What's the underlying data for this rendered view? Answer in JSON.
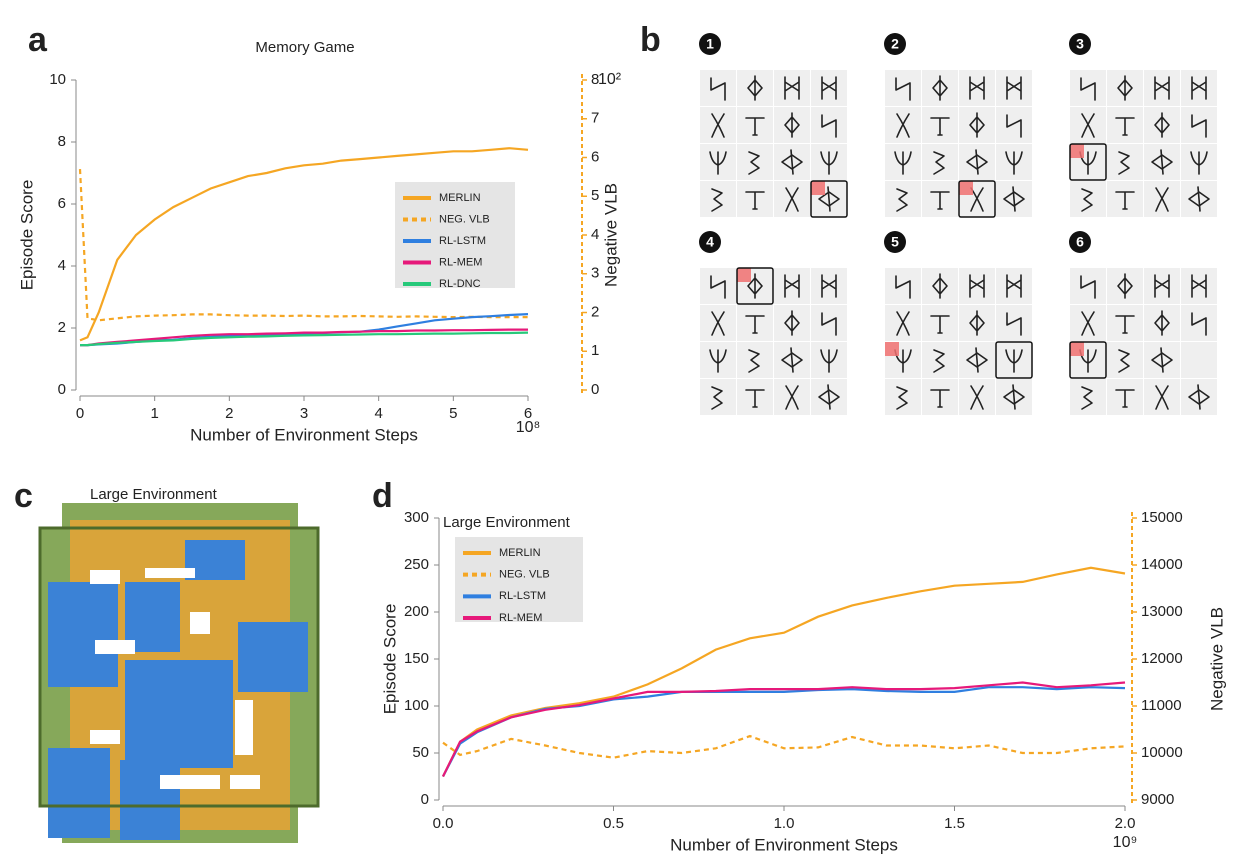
{
  "panel_labels": [
    "a",
    "b",
    "c",
    "d"
  ],
  "memory_steps": [
    "1",
    "2",
    "3",
    "4",
    "5",
    "6"
  ],
  "environment": {
    "title": "Large Environment"
  },
  "chart_data": [
    {
      "type": "line",
      "title": "Memory Game",
      "xlabel": "Number of Environment Steps",
      "ylabel": "Episode Score",
      "y2label": "Negative VLB",
      "x_exponent": "10⁸",
      "y2_exponent": "10²",
      "xlim": [
        0,
        6
      ],
      "xticks": [
        0,
        1,
        2,
        3,
        4,
        5,
        6
      ],
      "ylim": [
        0,
        10
      ],
      "yticks": [
        0,
        2,
        4,
        6,
        8,
        10
      ],
      "y2lim": [
        0,
        8
      ],
      "y2ticks": [
        0,
        1,
        2,
        3,
        4,
        5,
        6,
        7,
        8
      ],
      "x": [
        0,
        0.1,
        0.25,
        0.5,
        0.75,
        1,
        1.25,
        1.5,
        1.75,
        2,
        2.25,
        2.5,
        2.75,
        3,
        3.25,
        3.5,
        3.75,
        4,
        4.25,
        4.5,
        4.75,
        5,
        5.25,
        5.5,
        5.75,
        6
      ],
      "series": [
        {
          "name": "MERLIN",
          "color": "#f5a623",
          "style": "solid",
          "values": [
            1.6,
            1.7,
            2.5,
            4.2,
            5.0,
            5.5,
            5.9,
            6.2,
            6.5,
            6.7,
            6.9,
            7.0,
            7.15,
            7.25,
            7.3,
            7.4,
            7.45,
            7.5,
            7.55,
            7.6,
            7.65,
            7.7,
            7.7,
            7.75,
            7.8,
            7.75
          ]
        },
        {
          "name": "NEG. VLB",
          "color": "#f5a623",
          "style": "dashed",
          "axis": "y2",
          "values": [
            5.7,
            1.85,
            1.8,
            1.85,
            1.9,
            1.92,
            1.93,
            1.95,
            1.95,
            1.93,
            1.92,
            1.92,
            1.91,
            1.92,
            1.9,
            1.9,
            1.91,
            1.9,
            1.89,
            1.9,
            1.89,
            1.88,
            1.89,
            1.88,
            1.88,
            1.88
          ]
        },
        {
          "name": "RL-LSTM",
          "color": "#2f7fe0",
          "style": "solid",
          "values": [
            1.45,
            1.45,
            1.47,
            1.5,
            1.55,
            1.6,
            1.62,
            1.68,
            1.72,
            1.75,
            1.77,
            1.78,
            1.8,
            1.82,
            1.84,
            1.86,
            1.88,
            1.95,
            2.05,
            2.15,
            2.25,
            2.3,
            2.35,
            2.38,
            2.42,
            2.45
          ]
        },
        {
          "name": "RL-MEM",
          "color": "#e6197a",
          "style": "solid",
          "values": [
            1.45,
            1.45,
            1.5,
            1.55,
            1.6,
            1.65,
            1.7,
            1.75,
            1.78,
            1.8,
            1.8,
            1.82,
            1.83,
            1.85,
            1.85,
            1.87,
            1.88,
            1.9,
            1.9,
            1.92,
            1.92,
            1.93,
            1.93,
            1.94,
            1.95,
            1.95
          ]
        },
        {
          "name": "RL-DNC",
          "color": "#27c97a",
          "style": "solid",
          "values": [
            1.45,
            1.45,
            1.48,
            1.52,
            1.55,
            1.58,
            1.6,
            1.65,
            1.68,
            1.7,
            1.72,
            1.73,
            1.75,
            1.76,
            1.77,
            1.78,
            1.79,
            1.8,
            1.8,
            1.81,
            1.82,
            1.82,
            1.83,
            1.84,
            1.84,
            1.85
          ]
        }
      ],
      "legend": "upper right"
    },
    {
      "type": "line",
      "title": "Large Environment",
      "xlabel": "Number of Environment Steps",
      "ylabel": "Episode Score",
      "y2label": "Negative VLB",
      "x_exponent": "10⁹",
      "xlim": [
        0,
        2
      ],
      "xticks": [
        {
          "value": 0,
          "label": "0.0"
        },
        0.5,
        {
          "value": 1,
          "label": "1.0"
        },
        1.5,
        {
          "value": 2,
          "label": "2.0"
        }
      ],
      "ylim": [
        0,
        300
      ],
      "yticks": [
        0,
        50,
        100,
        150,
        200,
        250,
        300
      ],
      "y2lim": [
        9000,
        15000
      ],
      "y2ticks": [
        9000,
        10000,
        11000,
        12000,
        13000,
        14000,
        15000
      ],
      "x": [
        0,
        0.05,
        0.1,
        0.2,
        0.3,
        0.4,
        0.5,
        0.6,
        0.7,
        0.8,
        0.9,
        1.0,
        1.1,
        1.2,
        1.3,
        1.4,
        1.5,
        1.6,
        1.7,
        1.8,
        1.9,
        2.0
      ],
      "series": [
        {
          "name": "MERLIN",
          "color": "#f5a623",
          "style": "solid",
          "values": [
            25,
            62,
            75,
            90,
            98,
            103,
            110,
            123,
            140,
            160,
            172,
            178,
            195,
            207,
            215,
            222,
            228,
            230,
            232,
            240,
            247,
            241
          ]
        },
        {
          "name": "NEG. VLB",
          "color": "#f5a623",
          "style": "dashed",
          "axis": "y2",
          "values": [
            10220,
            9960,
            10040,
            10300,
            10160,
            10000,
            9900,
            10040,
            10000,
            10100,
            10360,
            10100,
            10120,
            10340,
            10160,
            10160,
            10100,
            10160,
            10000,
            10000,
            10100,
            10140
          ]
        },
        {
          "name": "RL-LSTM",
          "color": "#2f7fe0",
          "style": "solid",
          "values": [
            25,
            60,
            72,
            88,
            97,
            100,
            107,
            110,
            115,
            115,
            115,
            115,
            117,
            118,
            116,
            115,
            115,
            120,
            120,
            118,
            120,
            119
          ]
        },
        {
          "name": "RL-MEM",
          "color": "#e6197a",
          "style": "solid",
          "values": [
            25,
            62,
            73,
            88,
            96,
            101,
            108,
            115,
            115,
            116,
            118,
            118,
            118,
            120,
            118,
            118,
            119,
            122,
            125,
            120,
            122,
            125
          ]
        }
      ],
      "legend": "upper left"
    }
  ]
}
